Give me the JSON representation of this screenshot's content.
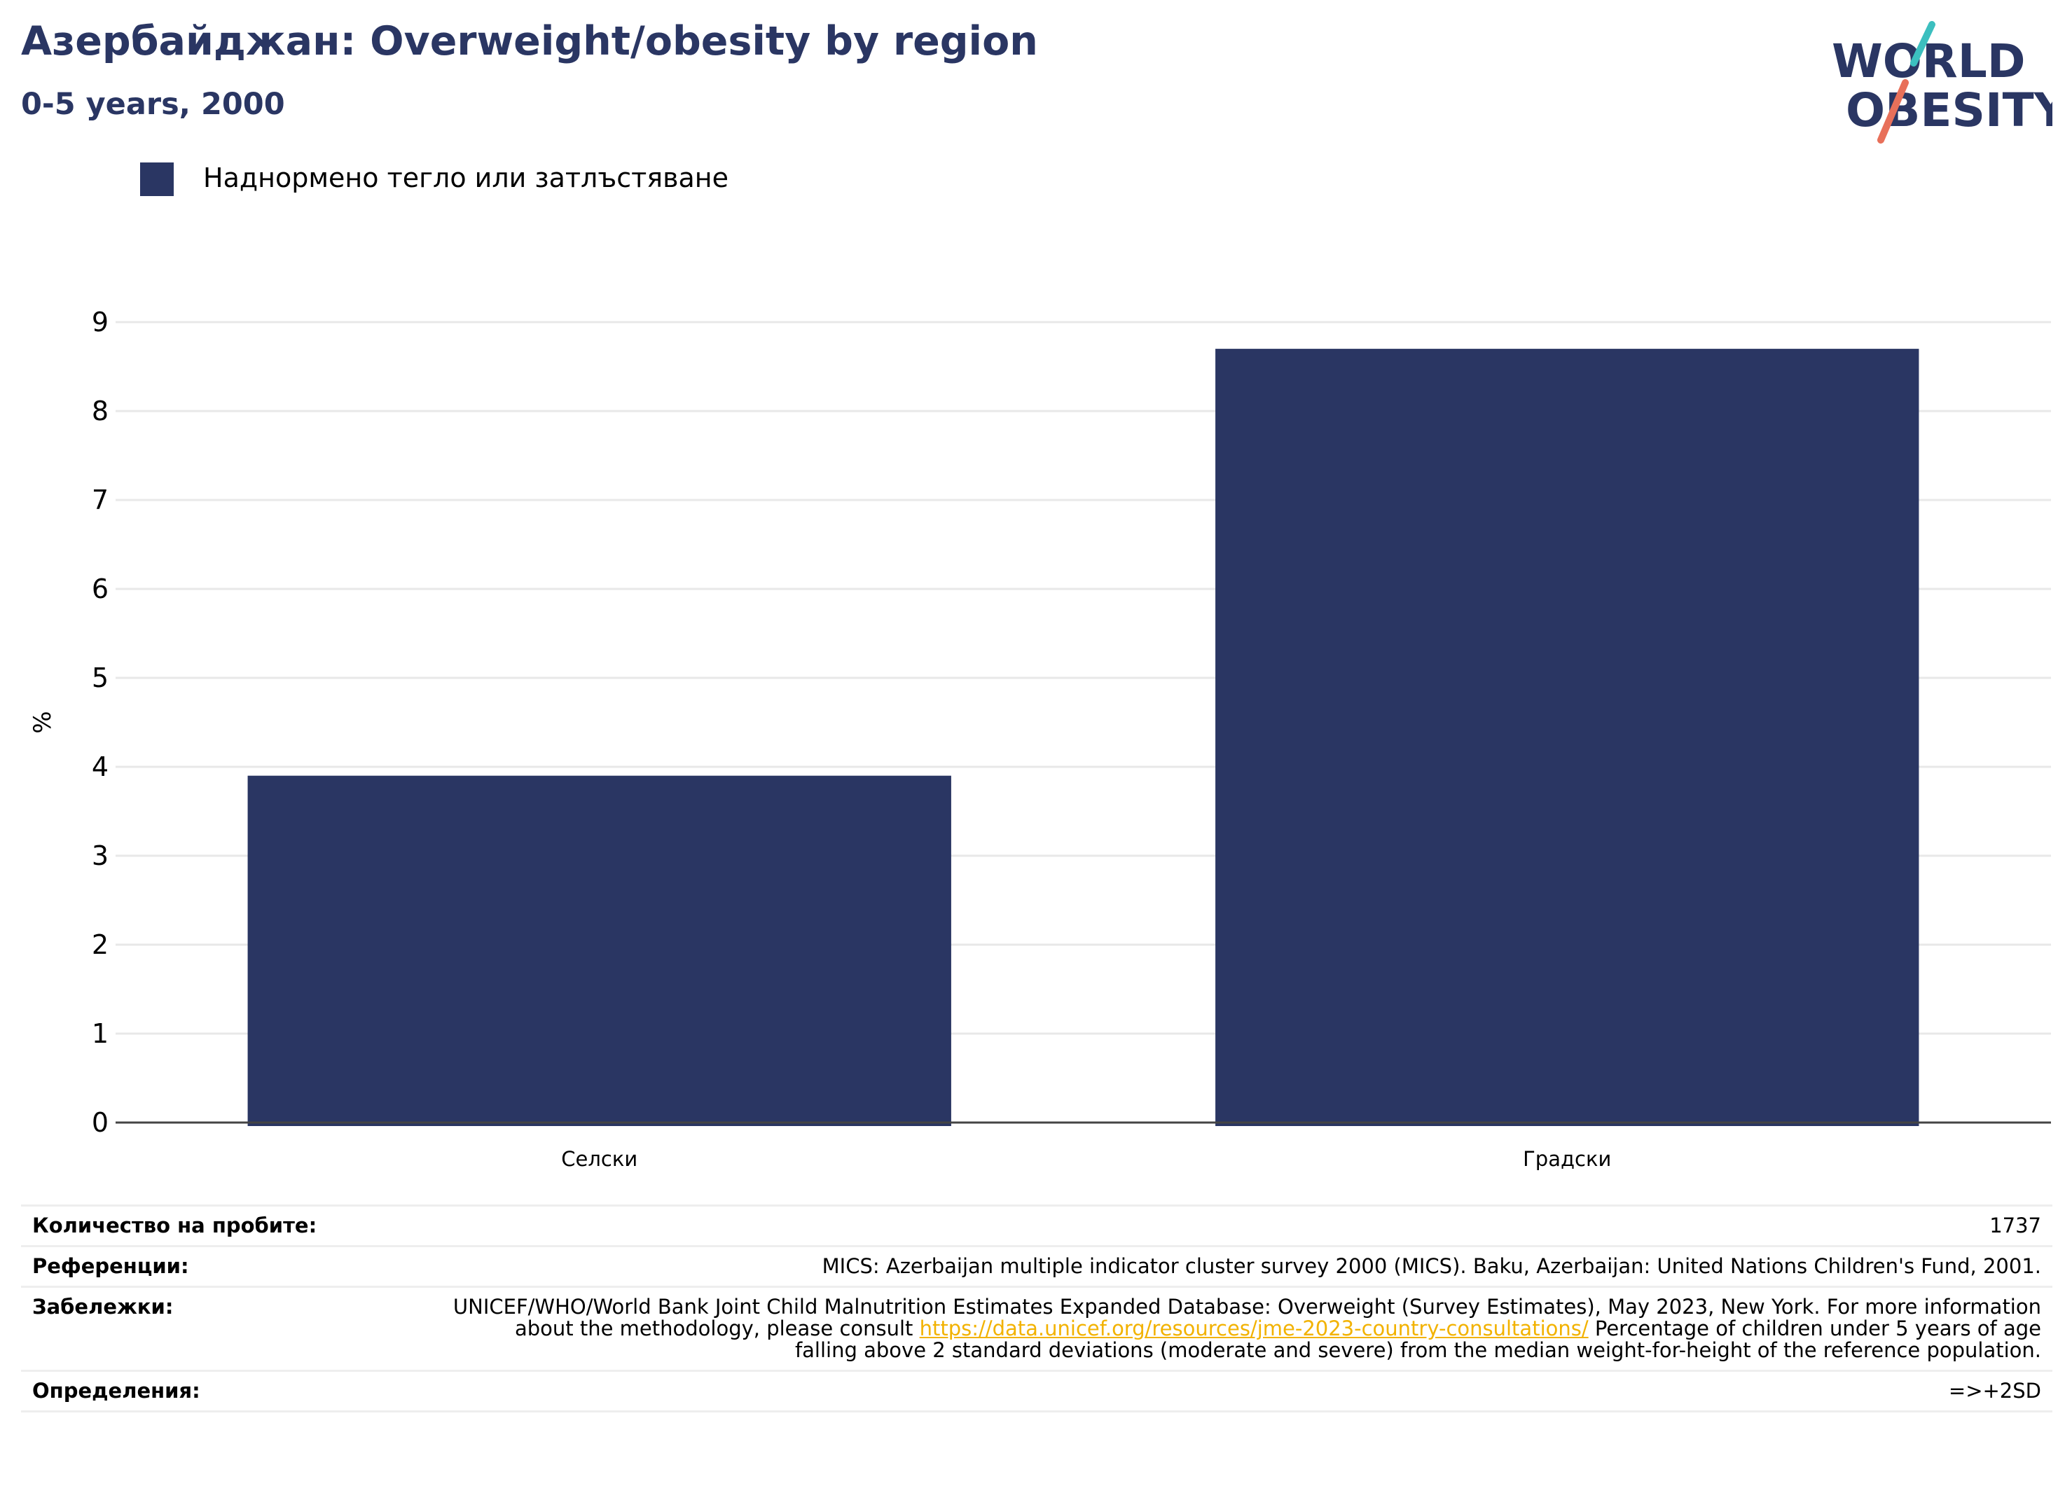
{
  "header": {
    "title": "Азербайджан: Overweight/obesity by region",
    "subtitle": "0-5 years, 2000"
  },
  "logo": {
    "line1": "WORLD",
    "line2": "OBESITY",
    "colors": {
      "text": "#2a3663",
      "slash_top": "#3cbfbf",
      "slash_bottom": "#e8705a"
    }
  },
  "legend": {
    "label": "Наднормено тегло или затлъстяване",
    "color": "#2a3663"
  },
  "chart_data": {
    "type": "bar",
    "categories": [
      "Селски",
      "Градски"
    ],
    "series": [
      {
        "name": "Наднормено тегло или затлъстяване",
        "values": [
          3.9,
          8.7
        ],
        "color": "#2a3663"
      }
    ],
    "ylabel": "%",
    "xlabel": "",
    "ylim": [
      0,
      9
    ],
    "yticks": [
      0,
      1,
      2,
      3,
      4,
      5,
      6,
      7,
      8,
      9
    ],
    "grid": true,
    "legend_position": "top-left"
  },
  "info": {
    "sample_label": "Количество на пробите:",
    "sample_value": "1737",
    "references_label": "Референции:",
    "references_value": "MICS: Azerbaijan multiple indicator cluster survey 2000 (MICS). Baku, Azerbaijan: United Nations Children's Fund, 2001.",
    "notes_label": "Забележки:",
    "notes_before": "UNICEF/WHO/World Bank Joint Child Malnutrition Estimates Expanded Database: Overweight (Survey Estimates), May 2023, New York. For more information about the methodology, please consult",
    "notes_link": "https://data.unicef.org/resources/jme-2023-country-consultations/",
    "notes_after": "Percentage of children under 5 years of age falling above 2 standard deviations (moderate and severe) from the median weight-for-height of the reference population.",
    "definitions_label": "Определения:",
    "definitions_value": "=>+2SD"
  }
}
